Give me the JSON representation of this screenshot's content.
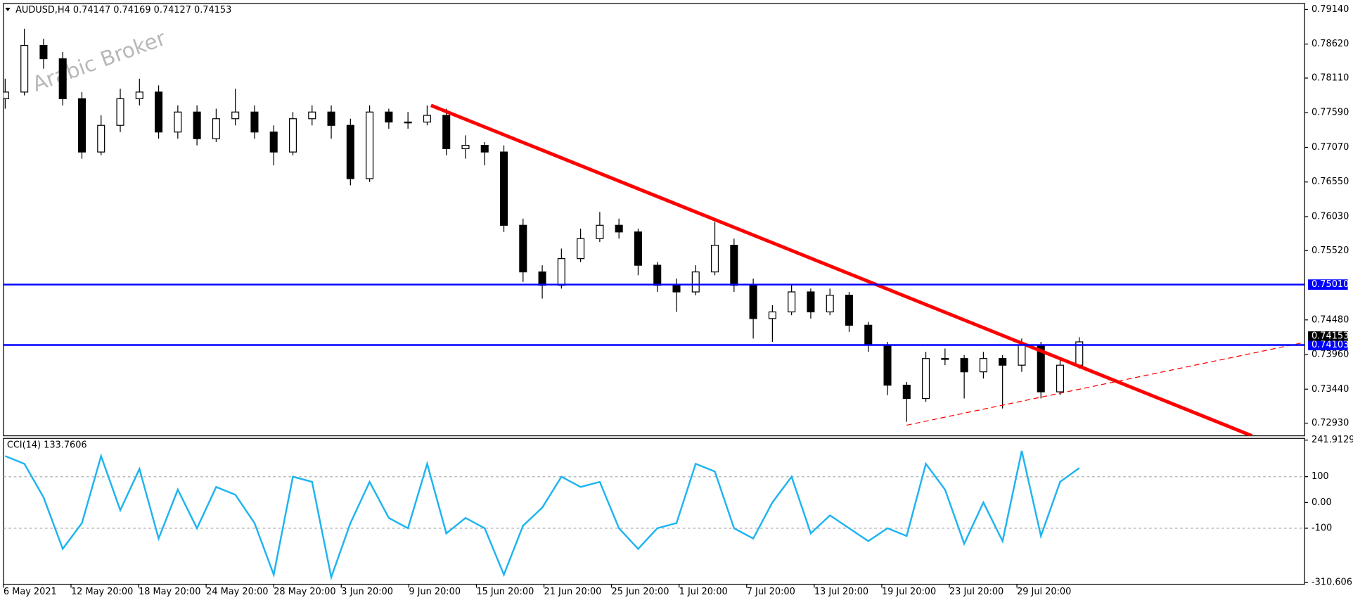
{
  "chart_data": [
    {
      "type": "candlestick",
      "title": "AUDUSD,H4  0.74147 0.74169 0.74127 0.74153",
      "watermark": "Arabic Broker",
      "up_color": "#ffffff",
      "down_color": "#000000",
      "wick_color": "#000000",
      "ohlc": [
        [
          0.778,
          0.781,
          0.7765,
          0.779
        ],
        [
          0.779,
          0.7885,
          0.7785,
          0.786
        ],
        [
          0.786,
          0.787,
          0.7825,
          0.784
        ],
        [
          0.784,
          0.785,
          0.777,
          0.778
        ],
        [
          0.778,
          0.779,
          0.769,
          0.77
        ],
        [
          0.77,
          0.7755,
          0.7695,
          0.774
        ],
        [
          0.774,
          0.7795,
          0.773,
          0.778
        ],
        [
          0.778,
          0.781,
          0.777,
          0.779
        ],
        [
          0.779,
          0.78,
          0.772,
          0.773
        ],
        [
          0.773,
          0.777,
          0.772,
          0.776
        ],
        [
          0.776,
          0.777,
          0.771,
          0.772
        ],
        [
          0.772,
          0.7765,
          0.7715,
          0.775
        ],
        [
          0.775,
          0.7795,
          0.774,
          0.776
        ],
        [
          0.776,
          0.777,
          0.772,
          0.773
        ],
        [
          0.773,
          0.774,
          0.768,
          0.77
        ],
        [
          0.77,
          0.776,
          0.7695,
          0.775
        ],
        [
          0.775,
          0.777,
          0.774,
          0.776
        ],
        [
          0.776,
          0.777,
          0.772,
          0.774
        ],
        [
          0.774,
          0.775,
          0.765,
          0.766
        ],
        [
          0.766,
          0.777,
          0.7655,
          0.776
        ],
        [
          0.776,
          0.7765,
          0.7735,
          0.7745
        ],
        [
          0.7745,
          0.776,
          0.7735,
          0.7745
        ],
        [
          0.7745,
          0.777,
          0.774,
          0.7755
        ],
        [
          0.7755,
          0.7765,
          0.7695,
          0.7705
        ],
        [
          0.7705,
          0.7725,
          0.769,
          0.771
        ],
        [
          0.771,
          0.7715,
          0.768,
          0.77
        ],
        [
          0.77,
          0.771,
          0.758,
          0.759
        ],
        [
          0.759,
          0.76,
          0.7505,
          0.752
        ],
        [
          0.752,
          0.753,
          0.748,
          0.75
        ],
        [
          0.75,
          0.7555,
          0.7495,
          0.754
        ],
        [
          0.754,
          0.7585,
          0.7535,
          0.757
        ],
        [
          0.757,
          0.761,
          0.7565,
          0.759
        ],
        [
          0.759,
          0.76,
          0.757,
          0.758
        ],
        [
          0.758,
          0.7585,
          0.7515,
          0.753
        ],
        [
          0.753,
          0.7535,
          0.749,
          0.75
        ],
        [
          0.75,
          0.751,
          0.746,
          0.749
        ],
        [
          0.749,
          0.753,
          0.7485,
          0.752
        ],
        [
          0.752,
          0.7595,
          0.7515,
          0.756
        ],
        [
          0.756,
          0.757,
          0.749,
          0.75
        ],
        [
          0.75,
          0.751,
          0.742,
          0.745
        ],
        [
          0.745,
          0.747,
          0.7415,
          0.746
        ],
        [
          0.746,
          0.75,
          0.7455,
          0.749
        ],
        [
          0.749,
          0.7495,
          0.745,
          0.746
        ],
        [
          0.746,
          0.7495,
          0.7455,
          0.7485
        ],
        [
          0.7485,
          0.749,
          0.743,
          0.744
        ],
        [
          0.744,
          0.7445,
          0.74,
          0.741
        ],
        [
          0.741,
          0.7415,
          0.7335,
          0.735
        ],
        [
          0.735,
          0.7355,
          0.7295,
          0.733
        ],
        [
          0.733,
          0.74,
          0.7325,
          0.739
        ],
        [
          0.739,
          0.7405,
          0.738,
          0.739
        ],
        [
          0.739,
          0.7395,
          0.733,
          0.737
        ],
        [
          0.737,
          0.74,
          0.736,
          0.739
        ],
        [
          0.739,
          0.7395,
          0.7315,
          0.738
        ],
        [
          0.738,
          0.742,
          0.737,
          0.741
        ],
        [
          0.741,
          0.7415,
          0.733,
          0.734
        ],
        [
          0.734,
          0.739,
          0.7335,
          0.738
        ],
        [
          0.738,
          0.7422,
          0.7375,
          0.7415
        ]
      ],
      "x_labels": [
        "6 May 2021",
        "12 May 20:00",
        "18 May 20:00",
        "24 May 20:00",
        "28 May 20:00",
        "3 Jun 20:00",
        "9 Jun 20:00",
        "15 Jun 20:00",
        "21 Jun 20:00",
        "25 Jun 20:00",
        "1 Jul 20:00",
        "7 Jul 20:00",
        "13 Jul 20:00",
        "19 Jul 20:00",
        "23 Jul 20:00",
        "29 Jul 20:00"
      ],
      "ylim": [
        0.7274,
        0.7923
      ],
      "yticks": [
        {
          "value": 0.7914,
          "label": "0.79140"
        },
        {
          "value": 0.7862,
          "label": "0.78620"
        },
        {
          "value": 0.7811,
          "label": "0.78110"
        },
        {
          "value": 0.7759,
          "label": "0.77590"
        },
        {
          "value": 0.7707,
          "label": "0.77070"
        },
        {
          "value": 0.7655,
          "label": "0.76550"
        },
        {
          "value": 0.7603,
          "label": "0.76030"
        },
        {
          "value": 0.7552,
          "label": "0.75520"
        },
        {
          "value": 0.7448,
          "label": "0.74480"
        },
        {
          "value": 0.7396,
          "label": "0.73960"
        },
        {
          "value": 0.7344,
          "label": "0.73440"
        },
        {
          "value": 0.7293,
          "label": "0.72930"
        }
      ],
      "hlines": [
        {
          "value": 0.7501,
          "label": "0.75010",
          "color": "#0000ff"
        },
        {
          "value": 0.74103,
          "label": "0.74103",
          "color": "#0000ff"
        }
      ],
      "current_price": {
        "value": 0.74153,
        "label": "0.74153"
      },
      "trendlines": [
        {
          "x": [
            22.2,
            65.0
          ],
          "y": [
            0.777,
            0.7274
          ],
          "color": "#ff0000",
          "style": "solid"
        },
        {
          "x": [
            47.0,
            67.7
          ],
          "y": [
            0.729,
            0.7414
          ],
          "color": "#ff0000",
          "style": "dashed"
        }
      ]
    },
    {
      "type": "line",
      "title": "CCI(14) 133.7606",
      "color": "#1eb4f0",
      "values": [
        180,
        150,
        20,
        -180,
        -80,
        180,
        -30,
        130,
        -140,
        50,
        -100,
        60,
        30,
        -80,
        -280,
        100,
        80,
        -290,
        -80,
        80,
        -60,
        -100,
        150,
        -120,
        -60,
        -100,
        -280,
        -90,
        -20,
        100,
        60,
        80,
        -100,
        -180,
        -100,
        -80,
        150,
        120,
        -100,
        -140,
        0,
        100,
        -120,
        -50,
        -100,
        -150,
        -100,
        -130,
        150,
        50,
        -160,
        0,
        -150,
        200,
        -130,
        80,
        133.7606
      ],
      "ylim": [
        -310.6061,
        241.9129
      ],
      "yticks": [
        241.9129,
        100,
        {
          "value": 0,
          "label": "0.00"
        },
        -100,
        -310.6061
      ],
      "levels": [
        100,
        -100
      ]
    }
  ]
}
